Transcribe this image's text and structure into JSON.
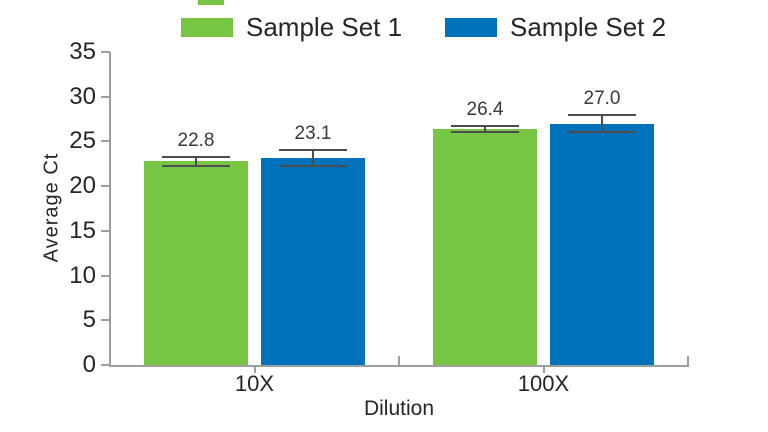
{
  "chart_data": {
    "type": "bar",
    "title": "",
    "categories": [
      "10X",
      "100X"
    ],
    "series": [
      {
        "name": "Sample Set 1",
        "color": "#76C644",
        "values": [
          22.8,
          26.4
        ],
        "errors": [
          0.5,
          0.35
        ]
      },
      {
        "name": "Sample Set 2",
        "color": "#0072BC",
        "values": [
          23.1,
          27.0
        ],
        "errors": [
          0.9,
          0.9
        ]
      }
    ],
    "value_labels": [
      [
        "22.8",
        "26.4"
      ],
      [
        "23.1",
        "27.0"
      ]
    ],
    "xlabel": "Dilution",
    "ylabel": "Average Ct",
    "ylim": [
      0,
      35
    ],
    "yticks": [
      0,
      5,
      10,
      15,
      20,
      25,
      30,
      35
    ],
    "grid": false,
    "error_bars": true,
    "legend_position": "top"
  },
  "legend": {
    "items": [
      {
        "label": "Sample Set 1",
        "color": "#76C644"
      },
      {
        "label": "Sample Set 2",
        "color": "#0072BC"
      }
    ]
  },
  "colors": {
    "background": "#ffffff",
    "axis": "#9e9e9e",
    "error_bar": "#4d4d4d",
    "text": "#262626",
    "value_label": "#3a3a3a"
  }
}
